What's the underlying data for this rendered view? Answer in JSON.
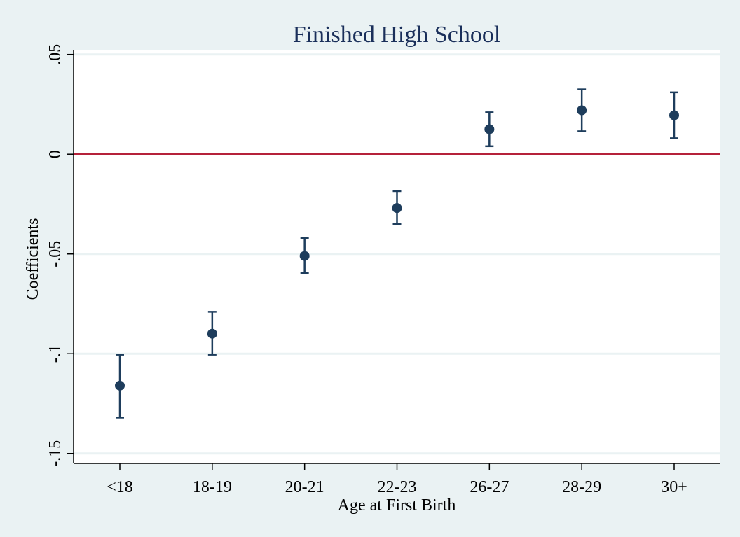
{
  "chart_data": {
    "type": "scatter",
    "title": "Finished High School",
    "xlabel": "Age at First Birth",
    "ylabel": "Coefficients",
    "ylim": [
      -0.155,
      0.052
    ],
    "yticks": [
      {
        "value": 0.05,
        "label": ".05"
      },
      {
        "value": 0,
        "label": "0"
      },
      {
        "value": -0.05,
        "label": "-.05"
      },
      {
        "value": -0.1,
        "label": "-.1"
      },
      {
        "value": -0.15,
        "label": "-.15"
      }
    ],
    "grid": true,
    "reference_line": {
      "y": 0,
      "color": "#b5213a"
    },
    "categories": [
      "<18",
      "18-19",
      "20-21",
      "22-23",
      "26-27",
      "28-29",
      "30+"
    ],
    "series": [
      {
        "estimates": [
          -0.116,
          -0.09,
          -0.051,
          -0.027,
          0.0125,
          0.022,
          0.0195
        ],
        "ci_lower": [
          -0.132,
          -0.1005,
          -0.0595,
          -0.035,
          0.004,
          0.0115,
          0.008
        ],
        "ci_upper": [
          -0.1005,
          -0.079,
          -0.042,
          -0.0185,
          0.021,
          0.0325,
          0.031
        ],
        "color": "#1e3d5c"
      }
    ]
  },
  "colors": {
    "background": "#eaf2f3",
    "plot_background": "#ffffff",
    "gridline": "#eaf2f3",
    "axis": "#000000",
    "marker": "#1e3d5c",
    "reference_line": "#b5213a",
    "title": "#1a2f5a"
  }
}
